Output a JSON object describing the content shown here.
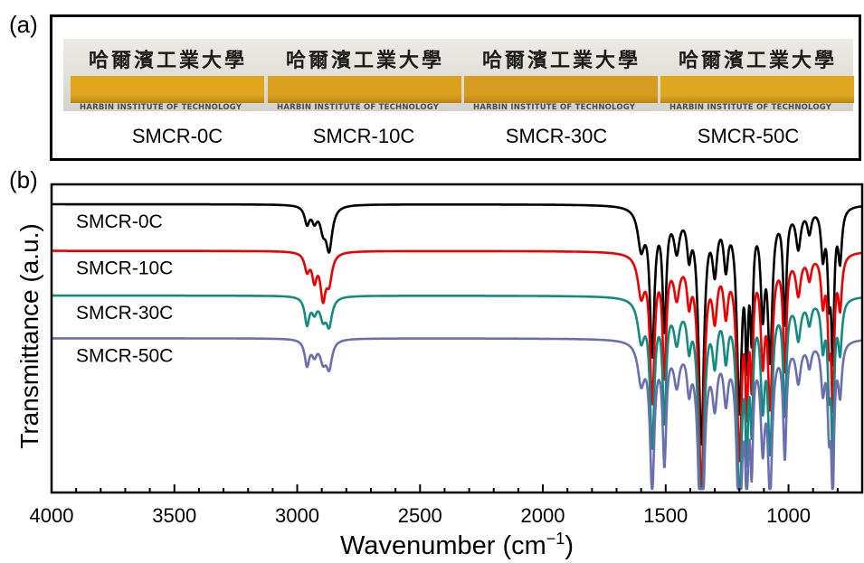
{
  "panel_labels": {
    "a": "(a)",
    "b": "(b)"
  },
  "photo": {
    "logo_text": "哈爾濱工業大學",
    "institute_text": "HARBIN INSTITUTE OF TECHNOLOGY",
    "strip_colors": [
      "#e2a51e",
      "#dba01e",
      "#d89d20",
      "#e0a721"
    ],
    "sample_labels": [
      "SMCR-0C",
      "SMCR-10C",
      "SMCR-30C",
      "SMCR-50C"
    ]
  },
  "chart_data": {
    "type": "line",
    "title": "",
    "xlabel": "Wavenumber (cm",
    "xlabel_superscript": "−1",
    "xlabel_close": ")",
    "ylabel": "Transmittance (a.u.)",
    "xlim": [
      4000,
      700
    ],
    "x_reversed": true,
    "yticks_shown": false,
    "xticks": [
      4000,
      3500,
      3000,
      2500,
      2000,
      1500,
      1000
    ],
    "xtick_labels": [
      "4000",
      "3500",
      "3000",
      "2500",
      "2000",
      "1500",
      "1000"
    ],
    "legend": "inline labels at left",
    "grid": false,
    "peaks": [
      {
        "x": 2960,
        "depth": 0.045,
        "width": 12
      },
      {
        "x": 2930,
        "depth": 0.035,
        "width": 12
      },
      {
        "x": 2895,
        "depth": 0.05,
        "width": 14
      },
      {
        "x": 2870,
        "depth": 0.07,
        "width": 14
      },
      {
        "x": 1600,
        "depth": 0.1,
        "width": 16
      },
      {
        "x": 1555,
        "depth": 0.37,
        "width": 11
      },
      {
        "x": 1505,
        "depth": 0.3,
        "width": 9
      },
      {
        "x": 1455,
        "depth": 0.1,
        "width": 14
      },
      {
        "x": 1405,
        "depth": 0.1,
        "width": 10
      },
      {
        "x": 1355,
        "depth": 0.6,
        "width": 13
      },
      {
        "x": 1300,
        "depth": 0.14,
        "width": 12
      },
      {
        "x": 1255,
        "depth": 0.13,
        "width": 11
      },
      {
        "x": 1200,
        "depth": 0.5,
        "width": 12
      },
      {
        "x": 1170,
        "depth": 0.32,
        "width": 7
      },
      {
        "x": 1150,
        "depth": 0.28,
        "width": 7
      },
      {
        "x": 1105,
        "depth": 0.24,
        "width": 10
      },
      {
        "x": 1075,
        "depth": 0.37,
        "width": 11
      },
      {
        "x": 1015,
        "depth": 0.29,
        "width": 8
      },
      {
        "x": 960,
        "depth": 0.1,
        "width": 12
      },
      {
        "x": 915,
        "depth": 0.06,
        "width": 10
      },
      {
        "x": 860,
        "depth": 0.12,
        "width": 9
      },
      {
        "x": 835,
        "depth": 0.19,
        "width": 7
      },
      {
        "x": 820,
        "depth": 0.36,
        "width": 7
      },
      {
        "x": 790,
        "depth": 0.13,
        "width": 9
      }
    ],
    "series": [
      {
        "name": "SMCR-0C",
        "color": "#000000",
        "offset": 0.0,
        "extra": [
          {
            "x": 2870,
            "depth": 0.04,
            "width": 18
          }
        ]
      },
      {
        "name": "SMCR-10C",
        "color": "#ee0000",
        "offset": 0.12,
        "extra": [
          {
            "x": 2895,
            "depth": 0.06,
            "width": 12
          },
          {
            "x": 2930,
            "depth": 0.03,
            "width": 10
          }
        ]
      },
      {
        "name": "SMCR-30C",
        "color": "#138b82",
        "offset": 0.235,
        "extra": [
          {
            "x": 2960,
            "depth": 0.025,
            "width": 10
          }
        ]
      },
      {
        "name": "SMCR-50C",
        "color": "#6a6fb0",
        "offset": 0.345,
        "extra": [
          {
            "x": 2960,
            "depth": 0.02,
            "width": 10
          }
        ]
      }
    ]
  }
}
